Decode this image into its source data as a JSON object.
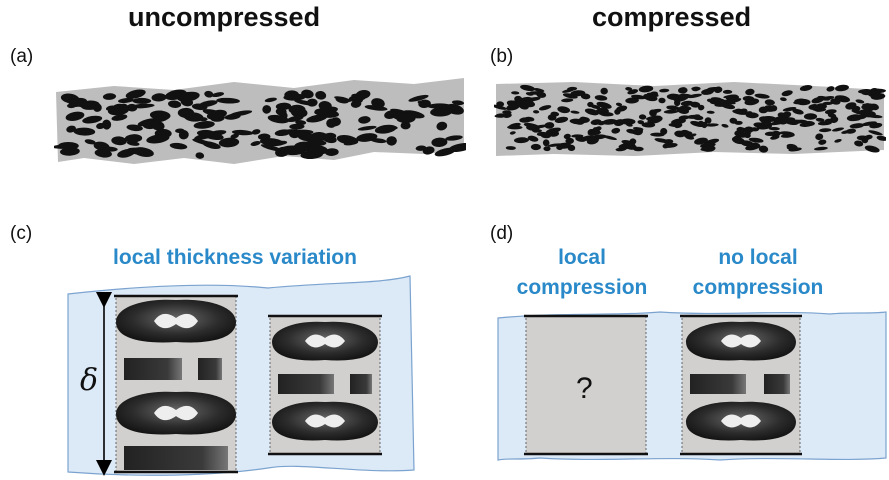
{
  "headers": {
    "left": "uncompressed",
    "right": "compressed"
  },
  "panel_tags": {
    "a": "(a)",
    "b": "(b)",
    "c": "(c)",
    "d": "(d)"
  },
  "captions": {
    "c": "local thickness variation",
    "d_left_line1": "local",
    "d_left_line2": "compression",
    "d_right_line1": "no local",
    "d_right_line2": "compression"
  },
  "symbols": {
    "thickness": "δ",
    "unknown": "?"
  },
  "colors": {
    "caption_blue": "#2a89c9",
    "layer_fill": "#dce9f7",
    "layer_stroke": "#7ba3cf",
    "cell_fill": "#d2d0ce",
    "fiber_dark": "#111111",
    "matrix_gray": "#bdbdbd"
  }
}
